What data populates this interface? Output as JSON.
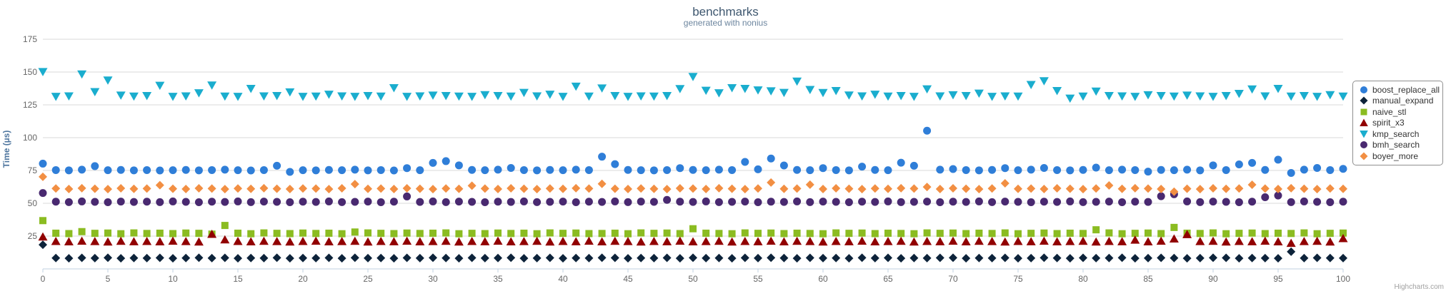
{
  "chart_data": {
    "type": "scatter",
    "title": "benchmarks",
    "subtitle": "generated with nonius",
    "xlabel": "",
    "ylabel": "Time (µs)",
    "xlim": [
      0,
      100
    ],
    "ylim": [
      0,
      180
    ],
    "x_ticks": [
      0,
      5,
      10,
      15,
      20,
      25,
      30,
      35,
      40,
      45,
      50,
      55,
      60,
      65,
      70,
      75,
      80,
      85,
      90,
      95,
      100
    ],
    "y_ticks": [
      25,
      50,
      75,
      100,
      125,
      150,
      175
    ],
    "grid": true,
    "legend_position": "right",
    "x_start": 0,
    "x_step": 1,
    "series": [
      {
        "name": "boost_replace_all",
        "color": "#2f7ed8",
        "marker": "circle",
        "values": [
          80.2,
          75.3,
          75.1,
          75.6,
          78.3,
          75.2,
          75.4,
          75.1,
          75.3,
          75.0,
          75.2,
          75.4,
          75.1,
          75.3,
          75.6,
          75.2,
          75.0,
          75.3,
          78.6,
          73.9,
          75.2,
          75.1,
          75.4,
          75.2,
          75.6,
          75.1,
          75.3,
          75.0,
          76.8,
          75.2,
          80.8,
          82.1,
          78.9,
          75.4,
          75.2,
          75.6,
          76.9,
          75.3,
          75.1,
          75.4,
          75.2,
          75.6,
          75.3,
          85.5,
          79.8,
          75.4,
          75.2,
          75.1,
          75.3,
          76.8,
          75.4,
          75.2,
          75.6,
          75.3,
          81.5,
          75.9,
          84.1,
          78.8,
          75.4,
          75.2,
          76.8,
          75.3,
          75.1,
          77.9,
          75.4,
          75.2,
          80.9,
          78.6,
          105.3,
          75.6,
          76.1,
          75.3,
          75.1,
          75.4,
          76.8,
          75.2,
          75.6,
          76.9,
          75.3,
          75.1,
          75.4,
          77.2,
          75.2,
          75.6,
          75.3,
          74.1,
          75.4,
          75.2,
          75.6,
          75.1,
          78.9,
          75.3,
          79.6,
          80.8,
          75.4,
          83.2,
          73.1,
          75.6,
          76.9,
          75.3,
          76.2
        ]
      },
      {
        "name": "manual_expand",
        "color": "#0d233a",
        "marker": "diamond",
        "values": [
          18.4,
          8.3,
          8.1,
          8.4,
          8.2,
          8.5,
          8.1,
          8.3,
          8.2,
          8.4,
          8.1,
          8.3,
          8.5,
          8.2,
          8.4,
          8.1,
          8.3,
          8.2,
          8.5,
          8.1,
          8.3,
          8.2,
          8.4,
          8.1,
          8.5,
          8.2,
          8.3,
          8.1,
          8.4,
          8.2,
          8.5,
          8.3,
          8.1,
          8.4,
          8.2,
          8.3,
          8.5,
          8.1,
          8.2,
          8.4,
          8.1,
          8.3,
          8.2,
          8.5,
          8.4,
          8.1,
          8.3,
          8.2,
          8.4,
          8.1,
          8.5,
          8.2,
          8.3,
          8.1,
          8.4,
          8.2,
          8.5,
          8.3,
          8.1,
          8.4,
          8.2,
          8.3,
          8.1,
          8.5,
          8.2,
          8.4,
          8.1,
          8.3,
          8.2,
          8.4,
          8.5,
          8.1,
          8.3,
          8.2,
          8.4,
          8.1,
          8.2,
          8.5,
          8.3,
          8.1,
          8.4,
          8.2,
          8.3,
          8.5,
          8.1,
          8.2,
          8.4,
          8.3,
          8.1,
          8.2,
          8.5,
          8.4,
          8.1,
          8.3,
          8.2,
          8.1,
          13.1,
          8.2,
          8.4,
          8.3,
          8.2
        ]
      },
      {
        "name": "naive_stl",
        "color": "#8bbc21",
        "marker": "square",
        "values": [
          36.8,
          27.2,
          26.9,
          28.4,
          27.1,
          27.3,
          26.8,
          27.4,
          27.0,
          27.2,
          26.9,
          27.3,
          27.1,
          26.5,
          33.1,
          27.2,
          26.8,
          27.4,
          27.1,
          26.9,
          27.3,
          27.0,
          27.2,
          26.8,
          28.1,
          27.4,
          27.1,
          26.9,
          27.3,
          27.0,
          27.2,
          27.4,
          26.8,
          27.1,
          26.9,
          27.3,
          27.0,
          27.2,
          26.8,
          27.4,
          27.1,
          27.3,
          26.9,
          27.0,
          27.2,
          26.8,
          27.4,
          27.1,
          27.3,
          26.9,
          30.6,
          27.2,
          27.0,
          26.8,
          27.4,
          27.1,
          27.3,
          26.9,
          27.2,
          27.0,
          26.8,
          27.4,
          27.1,
          27.3,
          26.9,
          27.2,
          27.0,
          26.8,
          27.4,
          27.1,
          27.3,
          26.9,
          27.2,
          27.0,
          27.4,
          26.8,
          27.1,
          27.3,
          26.9,
          27.2,
          27.0,
          29.8,
          27.4,
          26.8,
          27.1,
          27.3,
          26.9,
          31.6,
          27.2,
          27.0,
          27.4,
          26.8,
          27.1,
          27.3,
          26.9,
          27.2,
          27.0,
          27.4,
          26.8,
          27.1,
          27.3
        ]
      },
      {
        "name": "spirit_x3",
        "color": "#910000",
        "marker": "triangle",
        "values": [
          24.6,
          21.2,
          20.9,
          21.4,
          21.1,
          20.8,
          21.3,
          21.0,
          21.2,
          20.9,
          21.4,
          21.1,
          20.8,
          26.6,
          22.4,
          21.2,
          20.9,
          21.3,
          21.1,
          20.8,
          21.2,
          21.4,
          20.9,
          21.1,
          21.3,
          20.8,
          21.2,
          21.0,
          21.4,
          20.9,
          21.1,
          21.3,
          20.8,
          21.2,
          21.0,
          21.4,
          20.9,
          21.1,
          21.3,
          20.8,
          21.2,
          21.0,
          21.4,
          20.9,
          21.3,
          21.1,
          20.8,
          21.2,
          21.0,
          21.4,
          20.9,
          21.1,
          21.3,
          20.8,
          21.2,
          21.0,
          21.4,
          20.9,
          21.3,
          21.1,
          20.8,
          21.2,
          21.0,
          21.4,
          20.9,
          21.1,
          21.3,
          20.8,
          21.2,
          21.0,
          21.4,
          20.9,
          21.3,
          21.1,
          20.8,
          21.2,
          21.0,
          21.4,
          20.9,
          21.1,
          21.3,
          20.8,
          21.2,
          21.0,
          22.2,
          20.9,
          21.4,
          23.1,
          26.4,
          21.1,
          21.3,
          20.8,
          21.2,
          21.0,
          21.4,
          20.9,
          19.8,
          21.1,
          21.3,
          20.8,
          23.4
        ]
      },
      {
        "name": "kmp_search",
        "color": "#1aadce",
        "marker": "triangle-down",
        "values": [
          150.1,
          131.2,
          131.5,
          148.2,
          134.8,
          143.6,
          132.1,
          131.4,
          131.8,
          139.6,
          131.2,
          131.5,
          133.9,
          139.8,
          131.4,
          131.2,
          137.2,
          131.5,
          131.8,
          134.6,
          131.2,
          131.4,
          132.8,
          131.5,
          131.2,
          131.8,
          131.4,
          137.8,
          131.2,
          131.5,
          132.1,
          131.8,
          131.4,
          131.2,
          132.5,
          131.8,
          131.4,
          134.2,
          131.5,
          132.8,
          131.2,
          138.9,
          131.4,
          137.6,
          131.8,
          131.2,
          131.5,
          131.4,
          131.8,
          137.1,
          146.3,
          135.8,
          133.9,
          137.8,
          137.2,
          136.1,
          135.4,
          134.2,
          142.8,
          136.4,
          134.1,
          135.6,
          132.2,
          131.5,
          132.8,
          131.4,
          131.8,
          131.2,
          136.9,
          131.5,
          132.4,
          131.8,
          133.6,
          131.2,
          131.5,
          131.4,
          140.2,
          143.1,
          135.6,
          129.8,
          131.4,
          135.2,
          131.8,
          131.5,
          131.2,
          132.4,
          131.8,
          131.4,
          132.1,
          131.5,
          131.2,
          131.8,
          133.4,
          136.8,
          131.5,
          137.2,
          131.4,
          131.8,
          131.2,
          132.5,
          131.4
        ]
      },
      {
        "name": "bmh_search",
        "color": "#492970",
        "marker": "circle",
        "values": [
          57.8,
          51.2,
          50.9,
          51.4,
          51.1,
          50.8,
          51.3,
          51.0,
          51.2,
          50.9,
          51.4,
          51.1,
          50.8,
          51.2,
          51.0,
          51.4,
          50.9,
          51.3,
          51.1,
          50.8,
          51.2,
          51.0,
          51.4,
          50.9,
          51.1,
          51.3,
          50.8,
          51.2,
          55.2,
          51.0,
          51.4,
          50.9,
          51.3,
          51.1,
          50.8,
          51.2,
          51.0,
          51.4,
          50.9,
          51.1,
          51.3,
          50.8,
          51.2,
          51.0,
          51.4,
          50.9,
          51.3,
          51.1,
          52.6,
          51.2,
          51.0,
          51.4,
          50.9,
          51.1,
          51.3,
          50.8,
          51.2,
          51.0,
          51.4,
          50.9,
          51.3,
          51.1,
          50.8,
          51.2,
          51.0,
          51.4,
          50.9,
          51.1,
          51.3,
          50.8,
          51.2,
          51.0,
          51.4,
          50.9,
          51.3,
          51.1,
          50.8,
          51.2,
          51.0,
          51.4,
          50.9,
          51.1,
          51.3,
          50.8,
          51.2,
          51.0,
          55.4,
          56.9,
          51.4,
          50.9,
          51.3,
          51.1,
          50.8,
          51.2,
          54.6,
          55.9,
          50.9,
          51.4,
          51.1,
          50.8,
          51.2
        ]
      },
      {
        "name": "boyer_more",
        "color": "#f28f43",
        "marker": "diamond",
        "values": [
          70.2,
          61.3,
          60.9,
          61.5,
          61.1,
          60.8,
          61.4,
          61.0,
          61.2,
          63.8,
          61.1,
          60.9,
          61.4,
          61.2,
          60.8,
          61.3,
          61.0,
          61.5,
          61.1,
          60.9,
          61.3,
          61.2,
          60.8,
          61.4,
          64.6,
          61.0,
          61.2,
          60.9,
          61.4,
          61.1,
          60.8,
          61.3,
          61.0,
          63.4,
          61.2,
          60.9,
          61.4,
          61.1,
          60.8,
          61.3,
          61.0,
          61.5,
          61.2,
          64.8,
          61.1,
          60.9,
          61.3,
          61.0,
          60.8,
          61.4,
          61.2,
          60.9,
          61.5,
          61.1,
          60.8,
          61.3,
          65.8,
          61.0,
          61.2,
          64.2,
          60.9,
          61.4,
          61.1,
          60.8,
          61.3,
          61.0,
          61.5,
          61.2,
          62.4,
          60.9,
          61.4,
          61.1,
          60.8,
          61.3,
          65.2,
          61.0,
          61.2,
          60.9,
          61.4,
          61.1,
          60.8,
          61.3,
          63.6,
          61.0,
          61.5,
          61.2,
          60.9,
          58.8,
          61.1,
          60.8,
          61.4,
          61.0,
          61.3,
          64.1,
          61.2,
          60.9,
          61.5,
          61.1,
          60.8,
          61.3,
          61.0
        ]
      }
    ]
  },
  "credit": "Highcharts.com",
  "styling": {
    "grid_color": "#D8D8D8",
    "axis_line_color": "#C0D0E0",
    "tick_label_color": "#666666",
    "title_color": "#3E576F",
    "subtitle_color": "#6D869F",
    "yaxis_title_color": "#4d759e",
    "legend_border_color": "#909090",
    "legend_text_color": "#333333",
    "credit_color": "#A0A0A0"
  }
}
